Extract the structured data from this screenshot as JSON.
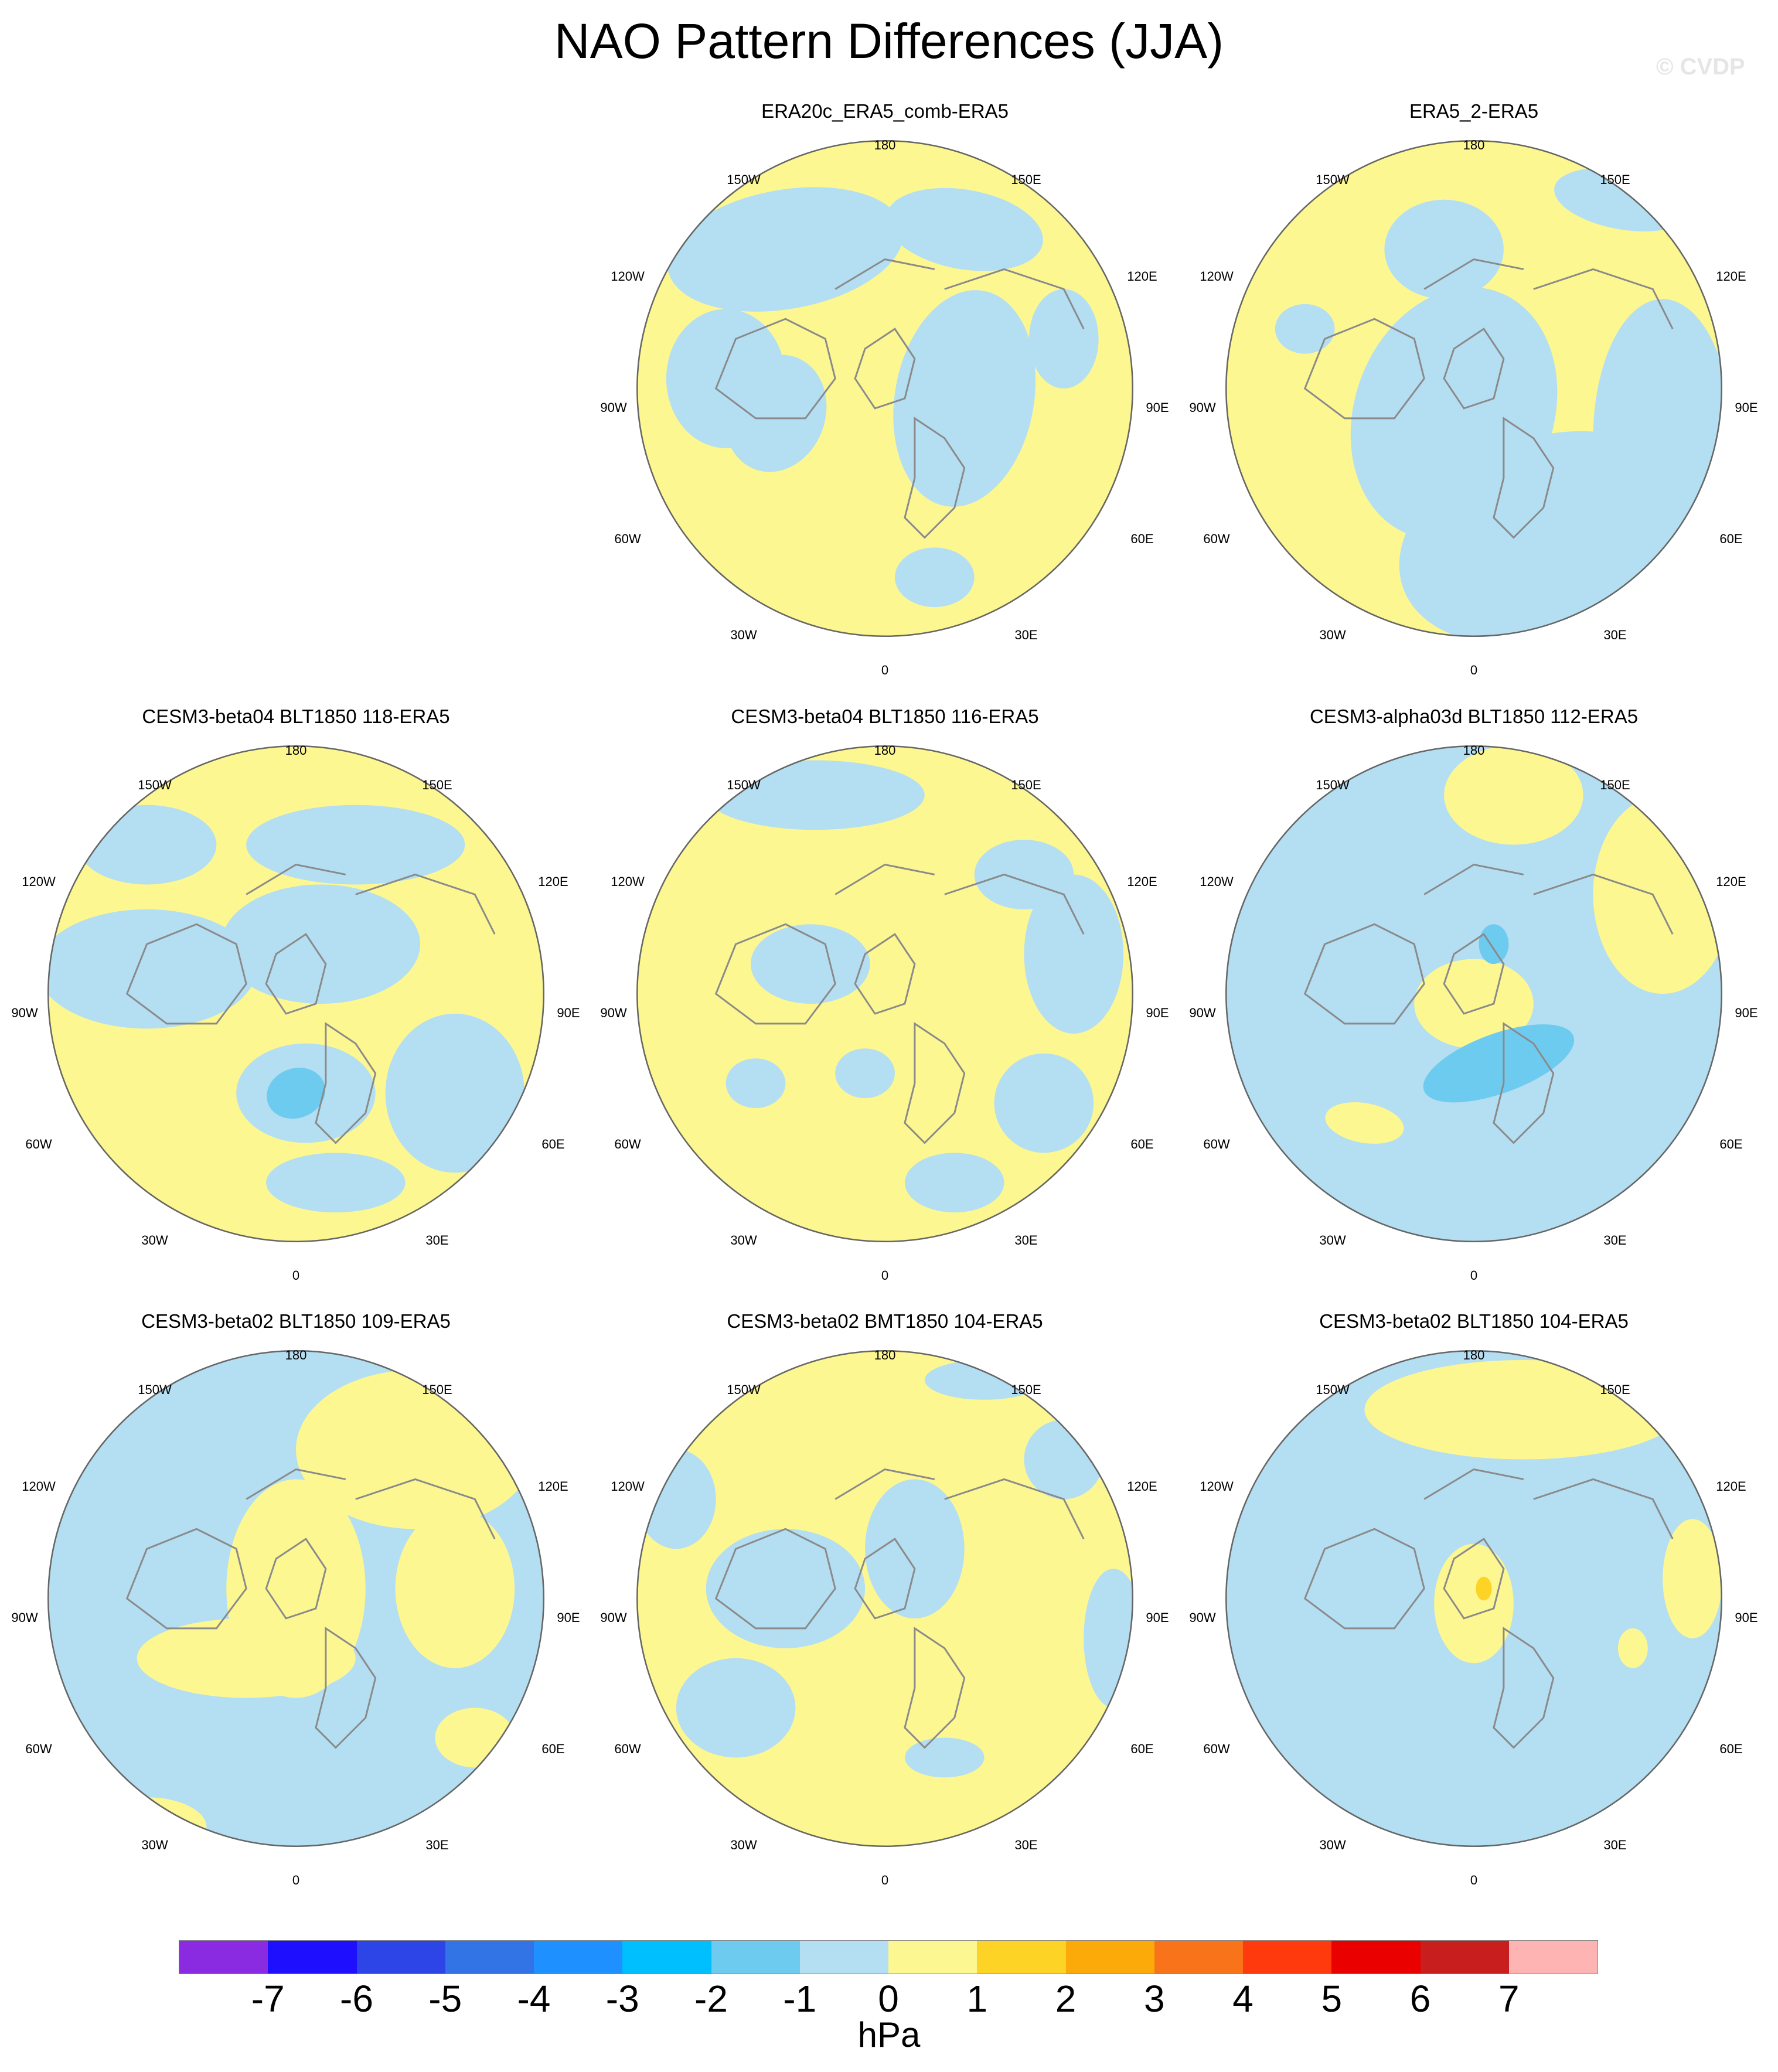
{
  "title": "NAO Pattern Differences (JJA)",
  "watermark": "© CVDP",
  "panels": [
    {
      "title": "ERA20c_ERA5_comb-ERA5",
      "variant": 0
    },
    {
      "title": "ERA5_2-ERA5",
      "variant": 1
    },
    {
      "title": "CESM3-beta04 BLT1850 118-ERA5",
      "variant": 2
    },
    {
      "title": "CESM3-beta04 BLT1850 116-ERA5",
      "variant": 3
    },
    {
      "title": "CESM3-alpha03d BLT1850 112-ERA5",
      "variant": 4
    },
    {
      "title": "CESM3-beta02 BLT1850 109-ERA5",
      "variant": 5
    },
    {
      "title": "CESM3-beta02 BMT1850 104-ERA5",
      "variant": 6
    },
    {
      "title": "CESM3-beta02 BLT1850 104-ERA5",
      "variant": 7
    }
  ],
  "lon_labels": {
    "top": "180",
    "top_left": "150W",
    "top_right": "150E",
    "upper_left": "120W",
    "upper_right": "120E",
    "left": "90W",
    "right": "90E",
    "lower_left": "60W",
    "lower_right": "60E",
    "bottom_left": "30W",
    "bottom_right": "30E",
    "bottom": "0"
  },
  "colorbar": {
    "colors": [
      "#8a2be2",
      "#1e10ff",
      "#2d44e6",
      "#3274e6",
      "#1e90ff",
      "#00bfff",
      "#6ecbf0",
      "#b4def2",
      "#fdf791",
      "#fdd426",
      "#fbaa0a",
      "#f8731a",
      "#ff3b0e",
      "#eb0000",
      "#c81e1e",
      "#ffb4b4"
    ],
    "ticks": [
      "-7",
      "-6",
      "-5",
      "-4",
      "-3",
      "-2",
      "-1",
      "0",
      "1",
      "2",
      "3",
      "4",
      "5",
      "6",
      "7"
    ],
    "units": "hPa"
  },
  "fill_colors": {
    "neg": "#b4def2",
    "pos": "#fdf791",
    "neg_strong": "#6ecbf0",
    "pos_strong": "#fdd426"
  }
}
